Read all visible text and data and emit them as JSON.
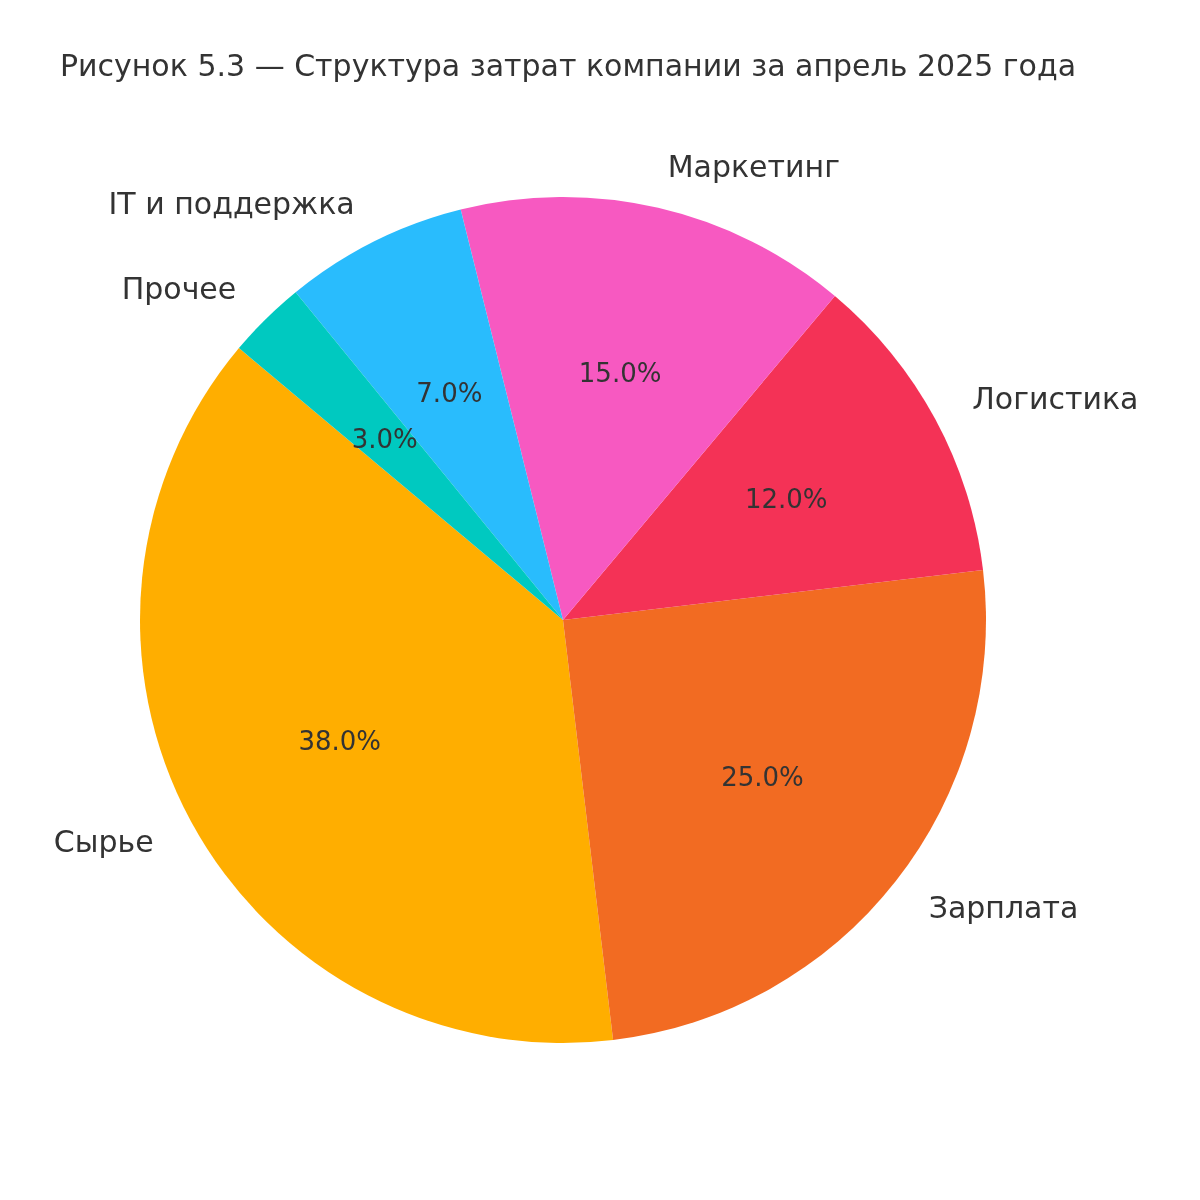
{
  "chart_data": {
    "type": "pie",
    "title": "Рисунок 5.3 — Структура затрат компании за апрель 2025 года",
    "categories": [
      "Сырье",
      "Зарплата",
      "Логистика",
      "Маркетинг",
      "IT и поддержка",
      "Прочее"
    ],
    "values": [
      38,
      25,
      12,
      15,
      7,
      3
    ],
    "colors": [
      "#ffae00",
      "#f26b22",
      "#f43256",
      "#f759c1",
      "#29bcfd",
      "#00c9c0"
    ],
    "value_labels": [
      "38.0%",
      "25.0%",
      "12.0%",
      "15.0%",
      "7.0%",
      "3.0%"
    ],
    "legend": false
  }
}
